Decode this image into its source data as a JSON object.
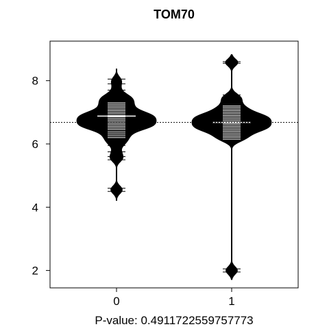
{
  "chart_data": {
    "type": "beanplot",
    "title": "TOM70",
    "xlabel": "P-value: 0.4911722559757773",
    "categories": [
      "0",
      "1"
    ],
    "y_ticks": [
      2,
      4,
      6,
      8
    ],
    "ylim": [
      1.45,
      9.25
    ],
    "overall_mean": 6.68,
    "grid": false,
    "groups": [
      {
        "name": "0",
        "mean": 6.88,
        "y_range": [
          4.2,
          8.4
        ],
        "density_peak": 6.75,
        "observations": [
          4.5,
          4.6,
          5.5,
          5.6,
          5.75,
          5.95,
          6.05,
          6.12,
          6.2,
          6.26,
          6.32,
          6.38,
          6.45,
          6.5,
          6.55,
          6.6,
          6.65,
          6.7,
          6.75,
          6.8,
          6.85,
          6.9,
          6.95,
          7.0,
          7.05,
          7.1,
          7.15,
          7.2,
          7.25,
          7.3,
          7.35,
          7.4,
          7.45,
          7.5,
          7.55,
          7.7,
          7.9,
          8.05
        ]
      },
      {
        "name": "1",
        "mean": 6.68,
        "y_range": [
          1.7,
          8.85
        ],
        "density_peak": 6.7,
        "observations": [
          1.95,
          2.05,
          6.1,
          6.15,
          6.2,
          6.25,
          6.3,
          6.35,
          6.4,
          6.45,
          6.5,
          6.55,
          6.6,
          6.65,
          6.7,
          6.75,
          6.8,
          6.85,
          6.9,
          6.95,
          7.0,
          7.05,
          7.1,
          7.15,
          7.2,
          7.3,
          7.4,
          7.45,
          7.55,
          8.55,
          8.6
        ]
      }
    ]
  }
}
